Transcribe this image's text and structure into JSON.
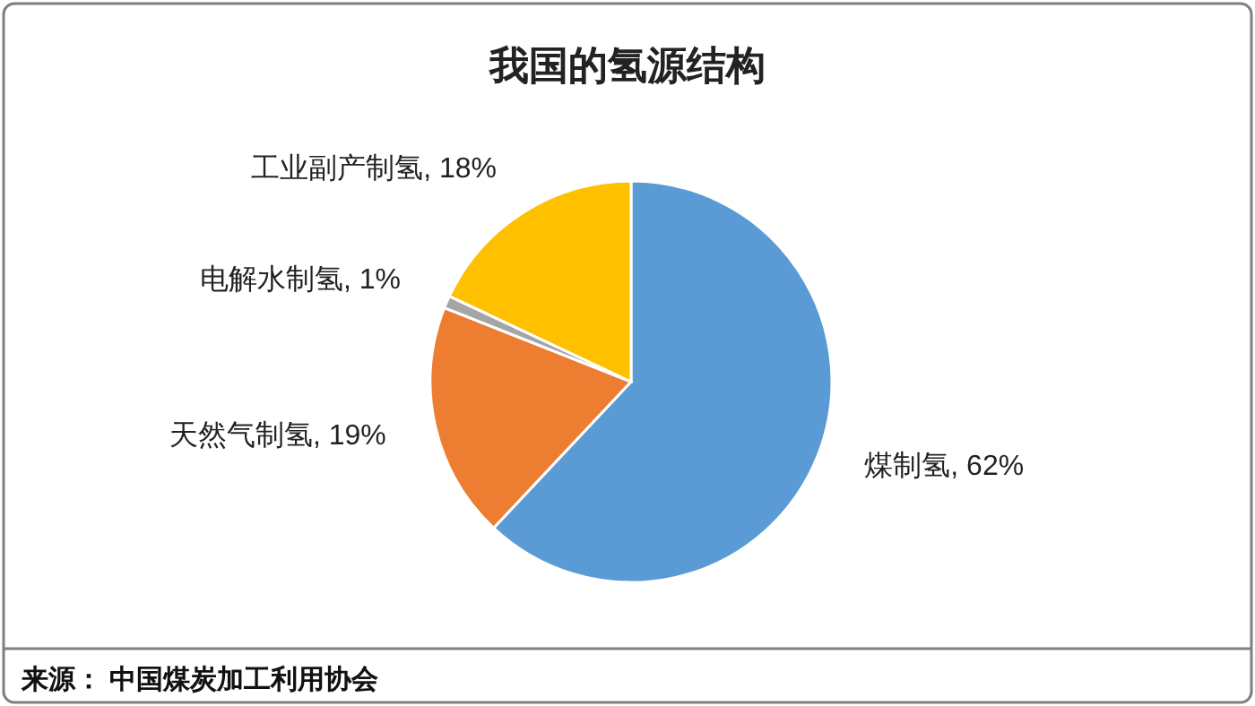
{
  "chart_data": {
    "type": "pie",
    "title": "我国的氢源结构",
    "categories": [
      "煤制氢",
      "天然气制氢",
      "电解水制氢",
      "工业副产制氢"
    ],
    "values": [
      62,
      19,
      1,
      18
    ],
    "value_labels": [
      "62%",
      "19%",
      "1%",
      "18%"
    ],
    "legend": false,
    "colors": [
      "#5b9bd5",
      "#ed7d31",
      "#a5a5a5",
      "#ffc000"
    ],
    "annotations": [
      "来源： 中国煤炭加工利用协会"
    ]
  }
}
